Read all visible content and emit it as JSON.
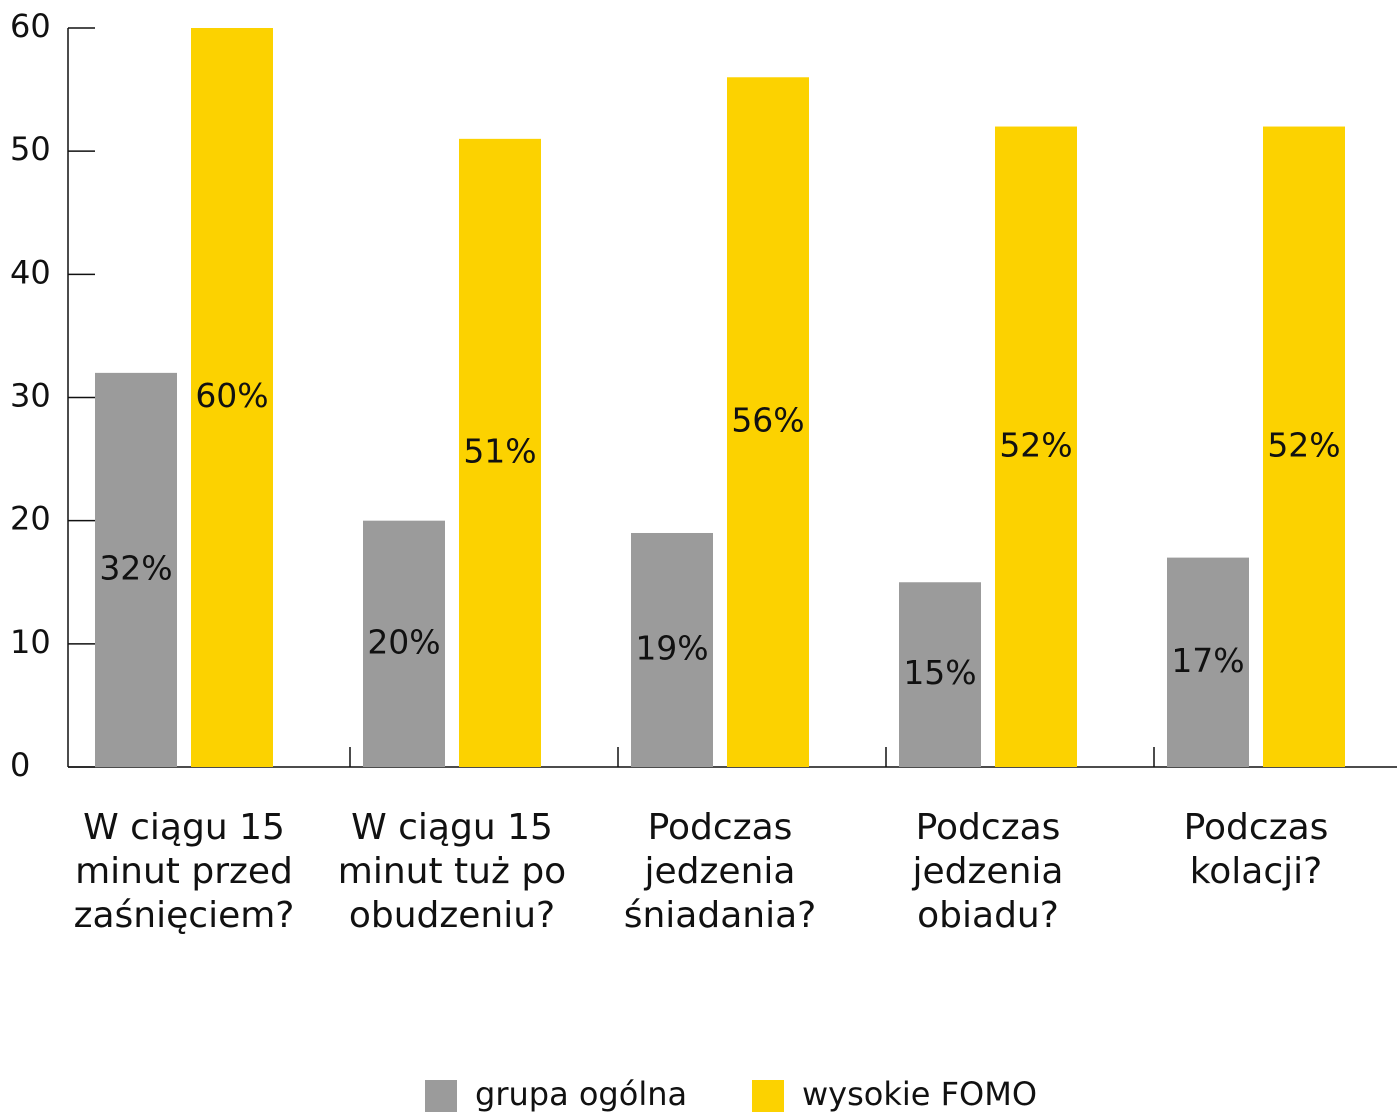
{
  "chart_data": {
    "type": "bar",
    "categories": [
      "W ciągu 15 minut przed zaśnięciem?",
      "W ciągu 15 minut tuż po obudzeniu?",
      "Podczas jedzenia śniadania?",
      "Podczas jedzenia obiadu?",
      "Podczas kolacji?"
    ],
    "series": [
      {
        "name": "grupa ogólna",
        "color": "#9b9b9b",
        "values": [
          32,
          20,
          19,
          15,
          17
        ],
        "value_labels": [
          "32%",
          "20%",
          "19%",
          "15%",
          "17%"
        ]
      },
      {
        "name": "wysokie FOMO",
        "color": "#fcd200",
        "values": [
          60,
          51,
          56,
          52,
          52
        ],
        "value_labels": [
          "60%",
          "51%",
          "56%",
          "52%",
          "52%"
        ]
      }
    ],
    "ylim": [
      0,
      60
    ],
    "yticks": [
      0,
      10,
      20,
      30,
      40,
      50,
      60
    ],
    "legend": "bottom"
  }
}
